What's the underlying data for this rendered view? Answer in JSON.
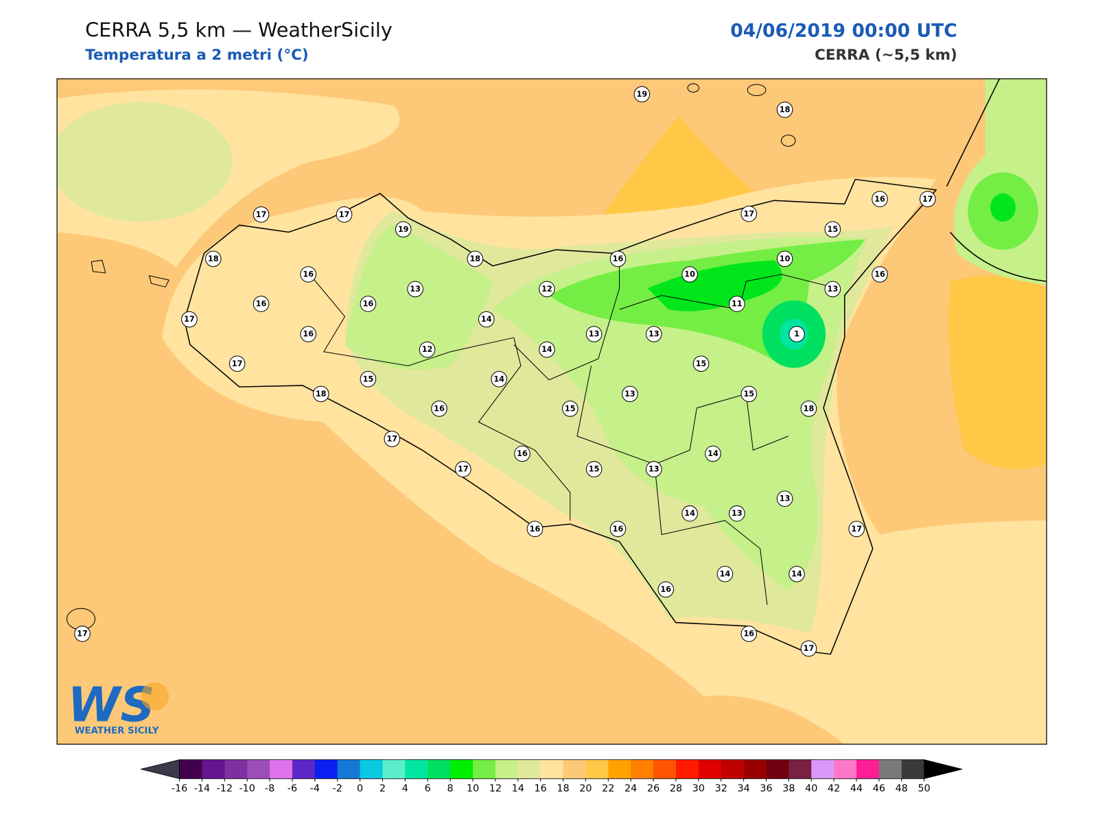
{
  "header": {
    "title": "CERRA 5,5 km — WeatherSicily",
    "subtitle": "Temperatura a 2 metri (°C)",
    "datetime": "04/06/2019 00:00 UTC",
    "model": "CERRA (~5,5 km)"
  },
  "stations": [
    19,
    18,
    17,
    17,
    19,
    16,
    17,
    17,
    15,
    18,
    18,
    16,
    10,
    10,
    16,
    16,
    16,
    16,
    13,
    12,
    13,
    11,
    17,
    14,
    16,
    13,
    13,
    1,
    12,
    14,
    17,
    15,
    15,
    14,
    18,
    13,
    15,
    16,
    15,
    18,
    17,
    16,
    14,
    17,
    15,
    13,
    13,
    14,
    13,
    16,
    16,
    17,
    14,
    14,
    16,
    16,
    17,
    17
  ],
  "logo": {
    "text": "WS",
    "caption": "WEATHER SICILY"
  },
  "colorbar": {
    "ticks": [
      -16,
      -14,
      -12,
      -10,
      -8,
      -6,
      -4,
      -2,
      0,
      2,
      4,
      6,
      8,
      10,
      12,
      14,
      16,
      18,
      20,
      22,
      24,
      26,
      28,
      30,
      32,
      34,
      36,
      38,
      40,
      42,
      44,
      46,
      48,
      50
    ],
    "colors": [
      "#44004f",
      "#66148f",
      "#7f30a0",
      "#9e4cb8",
      "#dd72ea",
      "#5c27c6",
      "#0b1ff3",
      "#1578d6",
      "#0ac8e0",
      "#5aeecb",
      "#00e6a0",
      "#00e060",
      "#00ee00",
      "#74ee44",
      "#c6f08a",
      "#e0e89c",
      "#ffe39f",
      "#fdc978",
      "#ffc846",
      "#ffa200",
      "#ff7f00",
      "#ff5500",
      "#ff1a00",
      "#e00000",
      "#c00000",
      "#9a0000",
      "#700010",
      "#7a2040",
      "#d899f8",
      "#ff78c8",
      "#ff1e96",
      "#7a7a7a",
      "#3a3a3a"
    ],
    "under": "#3a3a4a",
    "over": "#000000"
  }
}
